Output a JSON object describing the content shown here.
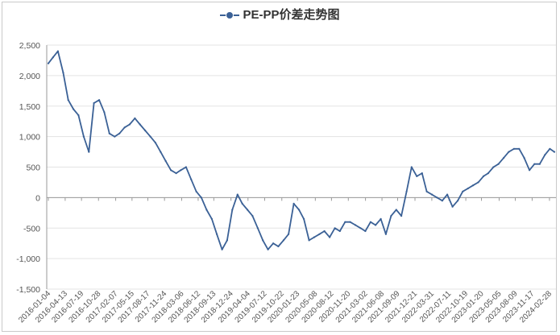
{
  "chart_data": {
    "type": "line",
    "title": "PE-PP价差走势图",
    "xlabel": "",
    "ylabel": "",
    "ylim": [
      -1500,
      2500
    ],
    "yticks": [
      -1500,
      -1000,
      -500,
      0,
      500,
      1000,
      1500,
      2000,
      2500
    ],
    "ytick_labels": [
      "-1,500",
      "-1,000",
      "-500",
      "0",
      "500",
      "1,000",
      "1,500",
      "2,000",
      "2,500"
    ],
    "xtick_labels": [
      "2016-01-04",
      "2016-04-13",
      "2016-07-19",
      "2016-10-28",
      "2017-02-07",
      "2017-05-15",
      "2017-08-17",
      "2017-11-24",
      "2018-03-06",
      "2018-06-12",
      "2018-09-13",
      "2018-12-24",
      "2019-04-04",
      "2019-07-12",
      "2019-10-22",
      "2020-01-23",
      "2020-05-08",
      "2020-08-12",
      "2020-11-20",
      "2021-03-02",
      "2021-06-08",
      "2021-09-09",
      "2021-12-21",
      "2022-03-31",
      "2022-07-11",
      "2022-10-19",
      "2023-01-20",
      "2023-05-05",
      "2023-08-09",
      "2023-11-17",
      "2024-02-28"
    ],
    "grid": true,
    "legend_position": "top-center",
    "line_color": "#3b6196",
    "series": [
      {
        "name": "PE-PP",
        "x": [
          "2016-01-04",
          "2016-02-01",
          "2016-03-01",
          "2016-04-01",
          "2016-05-01",
          "2016-06-01",
          "2016-07-01",
          "2016-08-01",
          "2016-09-01",
          "2016-10-01",
          "2016-11-01",
          "2016-12-01",
          "2017-01-01",
          "2017-02-01",
          "2017-03-01",
          "2017-04-01",
          "2017-05-01",
          "2017-06-01",
          "2017-07-01",
          "2017-08-01",
          "2017-09-01",
          "2017-10-01",
          "2017-11-01",
          "2017-12-01",
          "2018-01-01",
          "2018-02-01",
          "2018-03-01",
          "2018-04-01",
          "2018-05-01",
          "2018-06-01",
          "2018-07-01",
          "2018-08-01",
          "2018-09-01",
          "2018-10-01",
          "2018-11-01",
          "2018-12-01",
          "2019-01-01",
          "2019-02-01",
          "2019-03-01",
          "2019-04-01",
          "2019-05-01",
          "2019-06-01",
          "2019-07-01",
          "2019-08-01",
          "2019-09-01",
          "2019-10-01",
          "2019-11-01",
          "2019-12-01",
          "2020-01-01",
          "2020-02-01",
          "2020-03-01",
          "2020-04-01",
          "2020-05-01",
          "2020-06-01",
          "2020-07-01",
          "2020-08-01",
          "2020-09-01",
          "2020-10-01",
          "2020-11-01",
          "2020-12-01",
          "2021-01-01",
          "2021-02-01",
          "2021-03-01",
          "2021-04-01",
          "2021-05-01",
          "2021-06-01",
          "2021-07-01",
          "2021-08-01",
          "2021-09-01",
          "2021-10-01",
          "2021-11-01",
          "2021-12-01",
          "2022-01-01",
          "2022-02-01",
          "2022-03-01",
          "2022-04-01",
          "2022-05-01",
          "2022-06-01",
          "2022-07-01",
          "2022-08-01",
          "2022-09-01",
          "2022-10-01",
          "2022-11-01",
          "2022-12-01",
          "2023-01-01",
          "2023-02-01",
          "2023-03-01",
          "2023-04-01",
          "2023-05-01",
          "2023-06-01",
          "2023-07-01",
          "2023-08-01",
          "2023-09-01",
          "2023-10-01",
          "2023-11-01",
          "2023-12-01",
          "2024-01-01",
          "2024-02-01",
          "2024-03-01",
          "2024-03-28"
        ],
        "values": [
          2200,
          2300,
          2400,
          2050,
          1600,
          1450,
          1350,
          1000,
          750,
          1550,
          1600,
          1400,
          1050,
          1000,
          1050,
          1150,
          1200,
          1300,
          1200,
          1100,
          1000,
          900,
          750,
          600,
          450,
          400,
          450,
          500,
          300,
          100,
          0,
          -200,
          -350,
          -600,
          -850,
          -700,
          -200,
          50,
          -100,
          -200,
          -300,
          -500,
          -700,
          -850,
          -750,
          -800,
          -700,
          -600,
          -100,
          -200,
          -350,
          -700,
          -650,
          -600,
          -550,
          -650,
          -500,
          -550,
          -400,
          -400,
          -450,
          -500,
          -550,
          -400,
          -450,
          -350,
          -600,
          -300,
          -200,
          -300,
          100,
          500,
          350,
          400,
          100,
          50,
          0,
          -50,
          50,
          -150,
          -50,
          100,
          150,
          200,
          250,
          350,
          400,
          500,
          550,
          650,
          750,
          800,
          800,
          650,
          450,
          550,
          550,
          700,
          800,
          750
        ]
      }
    ]
  }
}
